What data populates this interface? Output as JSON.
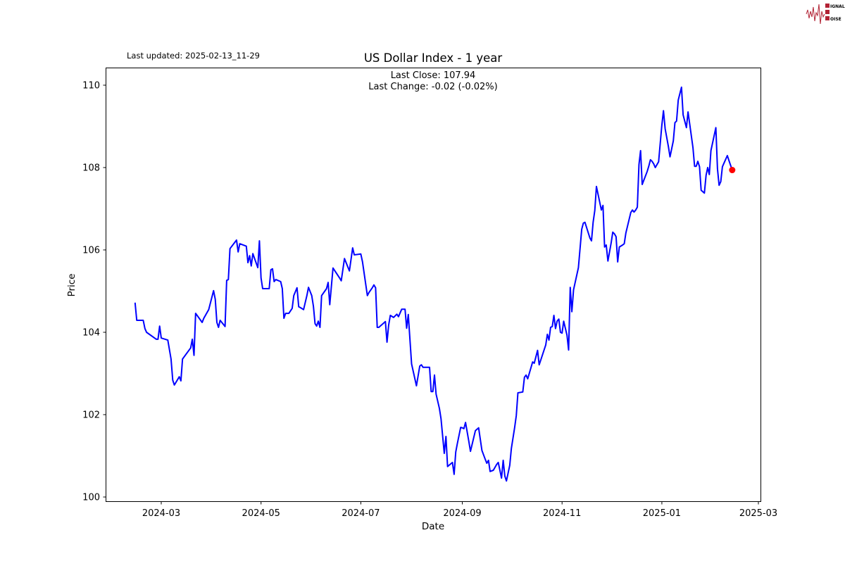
{
  "header": {
    "last_updated": "Last updated: 2025-02-13_11-29"
  },
  "logo": {
    "text": [
      "SIGNAL",
      "2",
      "NOISE"
    ],
    "color": "#b22234"
  },
  "chart_data": {
    "type": "line",
    "title": "US Dollar Index - 1 year",
    "annotation_close": "Last Close: 107.94",
    "annotation_change": "Last Change: -0.02 (-0.02%)",
    "xlabel": "Date",
    "ylabel": "Price",
    "ylim": [
      99.9,
      110.4
    ],
    "xlim": [
      "2024-01-28",
      "2025-03-02"
    ],
    "grid": false,
    "line_color": "#0000ff",
    "last_point_color": "#ff0000",
    "x_ticks": [
      "2024-03",
      "2024-05",
      "2024-07",
      "2024-09",
      "2024-11",
      "2025-01",
      "2025-03"
    ],
    "y_ticks": [
      100,
      102,
      104,
      106,
      108,
      110
    ],
    "last_point": {
      "date": "2025-02-13",
      "value": 107.94
    },
    "dates": [
      "2024-02-14",
      "2024-02-15",
      "2024-02-19",
      "2024-02-20",
      "2024-02-21",
      "2024-02-27",
      "2024-02-28",
      "2024-02-29",
      "2024-03-01",
      "2024-03-05",
      "2024-03-07",
      "2024-03-08",
      "2024-03-09",
      "2024-03-12",
      "2024-03-13",
      "2024-03-14",
      "2024-03-19",
      "2024-03-20",
      "2024-03-21",
      "2024-03-22",
      "2024-03-26",
      "2024-03-27",
      "2024-03-30",
      "2024-04-02",
      "2024-04-03",
      "2024-04-04",
      "2024-04-05",
      "2024-04-06",
      "2024-04-09",
      "2024-04-10",
      "2024-04-11",
      "2024-04-12",
      "2024-04-16",
      "2024-04-17",
      "2024-04-18",
      "2024-04-22",
      "2024-04-23",
      "2024-04-24",
      "2024-04-25",
      "2024-04-26",
      "2024-04-29",
      "2024-04-30",
      "2024-05-01",
      "2024-05-02",
      "2024-05-06",
      "2024-05-07",
      "2024-05-08",
      "2024-05-09",
      "2024-05-10",
      "2024-05-13",
      "2024-05-14",
      "2024-05-15",
      "2024-05-16",
      "2024-05-18",
      "2024-05-20",
      "2024-05-21",
      "2024-05-23",
      "2024-05-24",
      "2024-05-25",
      "2024-05-27",
      "2024-05-29",
      "2024-05-30",
      "2024-06-01",
      "2024-06-02",
      "2024-06-03",
      "2024-06-04",
      "2024-06-05",
      "2024-06-06",
      "2024-06-07",
      "2024-06-10",
      "2024-06-11",
      "2024-06-12",
      "2024-06-14",
      "2024-06-18",
      "2024-06-19",
      "2024-06-20",
      "2024-06-21",
      "2024-06-24",
      "2024-06-26",
      "2024-06-27",
      "2024-07-01",
      "2024-07-02",
      "2024-07-05",
      "2024-07-06",
      "2024-07-08",
      "2024-07-09",
      "2024-07-10",
      "2024-07-11",
      "2024-07-12",
      "2024-07-16",
      "2024-07-17",
      "2024-07-18",
      "2024-07-19",
      "2024-07-21",
      "2024-07-23",
      "2024-07-24",
      "2024-07-26",
      "2024-07-28",
      "2024-07-29",
      "2024-07-30",
      "2024-08-01",
      "2024-08-04",
      "2024-08-06",
      "2024-08-07",
      "2024-08-08",
      "2024-08-12",
      "2024-08-13",
      "2024-08-14",
      "2024-08-15",
      "2024-08-16",
      "2024-08-18",
      "2024-08-19",
      "2024-08-21",
      "2024-08-22",
      "2024-08-23",
      "2024-08-26",
      "2024-08-27",
      "2024-08-28",
      "2024-08-29",
      "2024-08-31",
      "2024-09-01",
      "2024-09-02",
      "2024-09-03",
      "2024-09-05",
      "2024-09-06",
      "2024-09-09",
      "2024-09-11",
      "2024-09-13",
      "2024-09-15",
      "2024-09-16",
      "2024-09-17",
      "2024-09-18",
      "2024-09-20",
      "2024-09-22",
      "2024-09-23",
      "2024-09-25",
      "2024-09-26",
      "2024-09-27",
      "2024-09-28",
      "2024-09-30",
      "2024-10-01",
      "2024-10-03",
      "2024-10-04",
      "2024-10-05",
      "2024-10-08",
      "2024-10-09",
      "2024-10-10",
      "2024-10-11",
      "2024-10-14",
      "2024-10-15",
      "2024-10-17",
      "2024-10-18",
      "2024-10-22",
      "2024-10-23",
      "2024-10-24",
      "2024-10-25",
      "2024-10-26",
      "2024-10-27",
      "2024-10-28",
      "2024-10-29",
      "2024-10-30",
      "2024-10-31",
      "2024-11-01",
      "2024-11-02",
      "2024-11-04",
      "2024-11-05",
      "2024-11-06",
      "2024-11-07",
      "2024-11-08",
      "2024-11-11",
      "2024-11-13",
      "2024-11-14",
      "2024-11-15",
      "2024-11-18",
      "2024-11-19",
      "2024-11-20",
      "2024-11-21",
      "2024-11-22",
      "2024-11-25",
      "2024-11-26",
      "2024-11-27",
      "2024-11-28",
      "2024-11-29",
      "2024-12-01",
      "2024-12-02",
      "2024-12-03",
      "2024-12-04",
      "2024-12-05",
      "2024-12-06",
      "2024-12-08",
      "2024-12-09",
      "2024-12-10",
      "2024-12-13",
      "2024-12-14",
      "2024-12-15",
      "2024-12-16",
      "2024-12-17",
      "2024-12-18",
      "2024-12-19",
      "2024-12-20",
      "2024-12-23",
      "2024-12-24",
      "2024-12-25",
      "2024-12-26",
      "2024-12-27",
      "2024-12-28",
      "2024-12-30",
      "2025-01-01",
      "2025-01-02",
      "2025-01-03",
      "2025-01-05",
      "2025-01-06",
      "2025-01-08",
      "2025-01-09",
      "2025-01-10",
      "2025-01-11",
      "2025-01-13",
      "2025-01-14",
      "2025-01-16",
      "2025-01-17",
      "2025-01-20",
      "2025-01-21",
      "2025-01-22",
      "2025-01-23",
      "2025-01-24",
      "2025-01-25",
      "2025-01-27",
      "2025-01-28",
      "2025-01-29",
      "2025-01-30",
      "2025-01-31",
      "2025-02-03",
      "2025-02-04",
      "2025-02-05",
      "2025-02-06",
      "2025-02-07",
      "2025-02-10",
      "2025-02-11",
      "2025-02-13"
    ],
    "values": [
      104.72,
      104.29,
      104.29,
      104.09,
      104.0,
      103.83,
      103.83,
      104.15,
      103.86,
      103.81,
      103.35,
      102.84,
      102.72,
      102.92,
      102.82,
      103.35,
      103.62,
      103.83,
      103.44,
      104.46,
      104.24,
      104.34,
      104.55,
      105.01,
      104.8,
      104.24,
      104.12,
      104.29,
      104.14,
      105.26,
      105.28,
      106.03,
      106.24,
      105.95,
      106.15,
      106.09,
      105.69,
      105.86,
      105.61,
      105.91,
      105.57,
      106.22,
      105.32,
      105.06,
      105.06,
      105.52,
      105.54,
      105.23,
      105.28,
      105.23,
      105.06,
      104.34,
      104.46,
      104.46,
      104.58,
      104.89,
      105.08,
      104.62,
      104.6,
      104.55,
      104.89,
      105.09,
      104.89,
      104.63,
      104.21,
      104.15,
      104.27,
      104.12,
      104.89,
      105.06,
      105.21,
      104.67,
      105.56,
      105.32,
      105.25,
      105.52,
      105.79,
      105.49,
      106.05,
      105.88,
      105.9,
      105.71,
      104.89,
      104.97,
      105.08,
      105.15,
      105.08,
      104.12,
      104.12,
      104.26,
      103.76,
      104.17,
      104.41,
      104.36,
      104.44,
      104.38,
      104.56,
      104.56,
      104.1,
      104.43,
      103.23,
      102.7,
      103.18,
      103.21,
      103.15,
      103.15,
      102.56,
      102.56,
      102.96,
      102.5,
      102.15,
      101.9,
      101.06,
      101.47,
      100.74,
      100.84,
      100.55,
      101.09,
      101.3,
      101.69,
      101.68,
      101.66,
      101.81,
      101.35,
      101.11,
      101.61,
      101.68,
      101.13,
      100.92,
      100.82,
      100.89,
      100.62,
      100.65,
      100.79,
      100.84,
      100.46,
      100.89,
      100.51,
      100.39,
      100.77,
      101.18,
      101.68,
      101.98,
      102.53,
      102.55,
      102.91,
      102.96,
      102.87,
      103.28,
      103.25,
      103.56,
      103.21,
      103.69,
      103.95,
      103.81,
      104.12,
      104.14,
      104.41,
      104.09,
      104.27,
      104.32,
      104.0,
      103.98,
      104.27,
      103.93,
      103.57,
      105.09,
      104.5,
      105.03,
      105.57,
      106.5,
      106.65,
      106.67,
      106.29,
      106.22,
      106.67,
      106.96,
      107.54,
      106.97,
      107.08,
      106.07,
      106.12,
      105.73,
      106.17,
      106.43,
      106.39,
      106.32,
      105.71,
      106.07,
      106.12,
      106.15,
      106.41,
      106.91,
      106.97,
      106.92,
      106.97,
      107.04,
      108.07,
      108.41,
      107.59,
      107.9,
      108.03,
      108.19,
      108.15,
      108.09,
      108.0,
      108.14,
      109.03,
      109.38,
      108.94,
      108.51,
      108.26,
      108.65,
      109.09,
      109.13,
      109.64,
      109.95,
      109.28,
      108.97,
      109.35,
      108.48,
      108.03,
      108.03,
      108.15,
      108.02,
      107.45,
      107.38,
      107.81,
      108.0,
      107.83,
      108.41,
      108.97,
      107.97,
      107.57,
      107.66,
      108.02,
      108.29,
      108.17,
      107.94
    ]
  }
}
